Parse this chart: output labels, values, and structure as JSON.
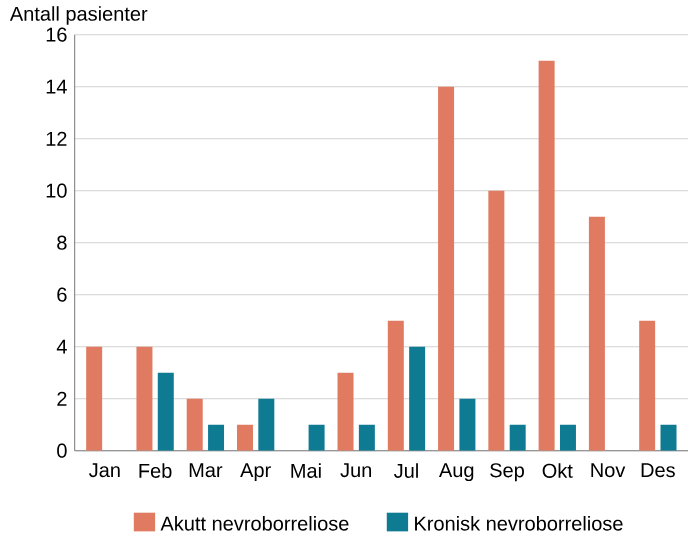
{
  "chart_data": {
    "type": "bar",
    "ylabel": "Antall pasienter",
    "categories": [
      "Jan",
      "Feb",
      "Mar",
      "Apr",
      "Mai",
      "Jun",
      "Jul",
      "Aug",
      "Sep",
      "Okt",
      "Nov",
      "Des"
    ],
    "series": [
      {
        "name": "Akutt nevroborreliose",
        "color": "#e07b62",
        "values": [
          4,
          4,
          2,
          1,
          0,
          3,
          5,
          14,
          10,
          15,
          9,
          5
        ]
      },
      {
        "name": "Kronisk nevroborreliose",
        "color": "#0f7b93",
        "values": [
          0,
          3,
          1,
          2,
          1,
          1,
          4,
          2,
          1,
          1,
          0,
          1
        ]
      }
    ],
    "ylim": [
      0,
      16
    ],
    "yticks": [
      0,
      2,
      4,
      6,
      8,
      10,
      12,
      14,
      16
    ],
    "grid": "y",
    "legend": "bottom"
  }
}
